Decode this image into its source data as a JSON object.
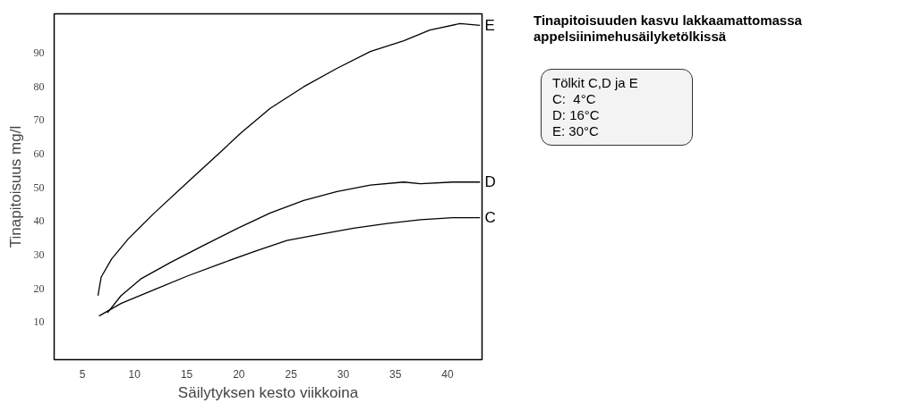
{
  "chart_data": {
    "type": "line",
    "title": "Tinapitoisuuden kasvu lakkaamattomassa appelsiinimehusäilyketölkissä",
    "xlabel": "Säilytyksen kesto viikkoina",
    "ylabel": "Tinapitoisuus mg/l",
    "annotations": [
      "Tölkit C,D ja E",
      "C:   4°C",
      "D: 16°C",
      "E: 30°C"
    ],
    "xlim": [
      2.3,
      43.3
    ],
    "ylim": [
      -1.2,
      101.6
    ],
    "xticks": [
      5,
      10,
      15,
      20,
      25,
      30,
      35,
      40
    ],
    "yticks": [
      10,
      20,
      30,
      40,
      50,
      60,
      70,
      80,
      90
    ],
    "grid": false,
    "series": [
      {
        "name": "E",
        "color": "#000000",
        "x": [
          6.5,
          6.8,
          7.8,
          9.4,
          11.9,
          15.1,
          18.3,
          20.2,
          23.0,
          26.2,
          29.4,
          32.6,
          35.8,
          38.3,
          41.2,
          43.1
        ],
        "values": [
          17.8,
          23.3,
          28.7,
          34.7,
          42.4,
          51.6,
          60.7,
          66.2,
          73.5,
          79.9,
          85.4,
          90.4,
          93.6,
          96.8,
          98.7,
          98.2
        ]
      },
      {
        "name": "D",
        "color": "#000000",
        "x": [
          7.4,
          8.7,
          10.6,
          13.5,
          16.7,
          19.9,
          23.0,
          26.2,
          29.4,
          32.6,
          35.8,
          37.4,
          40.5,
          43.1
        ],
        "values": [
          12.7,
          17.8,
          22.8,
          27.8,
          32.9,
          37.9,
          42.4,
          46.1,
          48.8,
          50.7,
          51.6,
          51.1,
          51.6,
          51.6
        ]
      },
      {
        "name": "C",
        "color": "#000000",
        "x": [
          6.6,
          8.7,
          11.9,
          15.1,
          18.3,
          21.5,
          24.6,
          27.8,
          31.0,
          34.2,
          37.4,
          40.5,
          43.1
        ],
        "values": [
          11.8,
          15.5,
          19.6,
          23.7,
          27.4,
          31.0,
          34.2,
          36.1,
          37.9,
          39.3,
          40.4,
          41.0,
          41.0
        ]
      }
    ]
  }
}
